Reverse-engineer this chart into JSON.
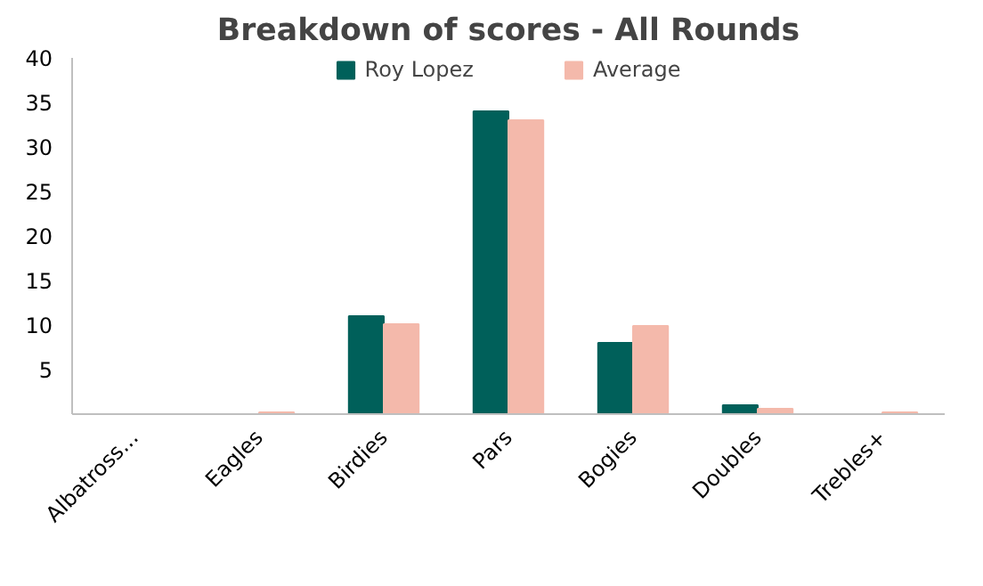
{
  "chart_data": {
    "type": "bar",
    "title": "Breakdown of scores - All Rounds",
    "categories": [
      "Albatross...",
      "Eagles",
      "Birdies",
      "Pars",
      "Bogies",
      "Doubles",
      "Trebles+"
    ],
    "series": [
      {
        "name": "Roy Lopez",
        "color": "#00605a",
        "values": [
          0,
          0,
          11,
          34,
          8,
          1,
          0
        ]
      },
      {
        "name": "Average",
        "color": "#f4b9ab",
        "values": [
          0,
          0.2,
          10.1,
          33,
          9.9,
          0.6,
          0.2
        ]
      }
    ],
    "ylim": [
      0,
      40
    ],
    "yticks": [
      5,
      10,
      15,
      20,
      25,
      30,
      35,
      40
    ],
    "grid": false,
    "legend": "top"
  }
}
